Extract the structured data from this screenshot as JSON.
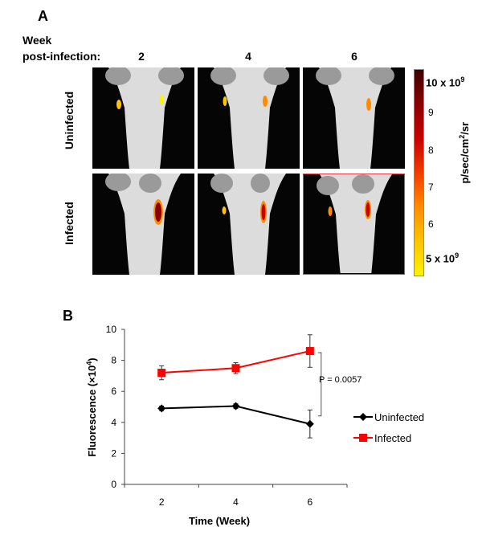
{
  "panel_a": {
    "letter": "A",
    "header_line1": "Week",
    "header_line2": "post-infection:",
    "weeks": [
      "2",
      "4",
      "6"
    ],
    "rows": [
      "Uninfected",
      "Infected"
    ],
    "colorbar": {
      "max_label": "10 x 10",
      "max_exp": "9",
      "min_label": "5 x 10",
      "min_exp": "9",
      "ticks": [
        "9",
        "8",
        "7",
        "6"
      ],
      "unit_main": "p/sec/cm",
      "unit_exp": "2",
      "unit_tail": "/sr",
      "colors": [
        "#fff200",
        "#ffc400",
        "#ff8c00",
        "#f23a00",
        "#c80000",
        "#8a0000",
        "#3d0000"
      ]
    },
    "highlight_color": "#e04050"
  },
  "chart_data": {
    "type": "line",
    "panel_letter": "B",
    "title": "",
    "xlabel": "Time (Week)",
    "ylabel": "Fluorescence (×10",
    "ylabel_exp": "4",
    "ylabel_close": ")",
    "x": [
      2,
      4,
      6
    ],
    "xlim": [
      1,
      7
    ],
    "ylim": [
      0,
      10
    ],
    "yticks": [
      "0",
      "2",
      "4",
      "6",
      "8",
      "10"
    ],
    "xticks": [
      "2",
      "4",
      "6"
    ],
    "series": [
      {
        "name": "Uninfected",
        "color": "#000000",
        "marker": "diamond",
        "values": [
          4.9,
          5.05,
          3.9
        ],
        "errors": [
          0.15,
          0.15,
          0.9
        ]
      },
      {
        "name": "Infected",
        "color": "#ff0000",
        "marker": "square",
        "values": [
          7.2,
          7.5,
          8.6
        ],
        "errors": [
          0.45,
          0.35,
          1.05
        ]
      }
    ],
    "annotation": "P = 0.0057"
  }
}
